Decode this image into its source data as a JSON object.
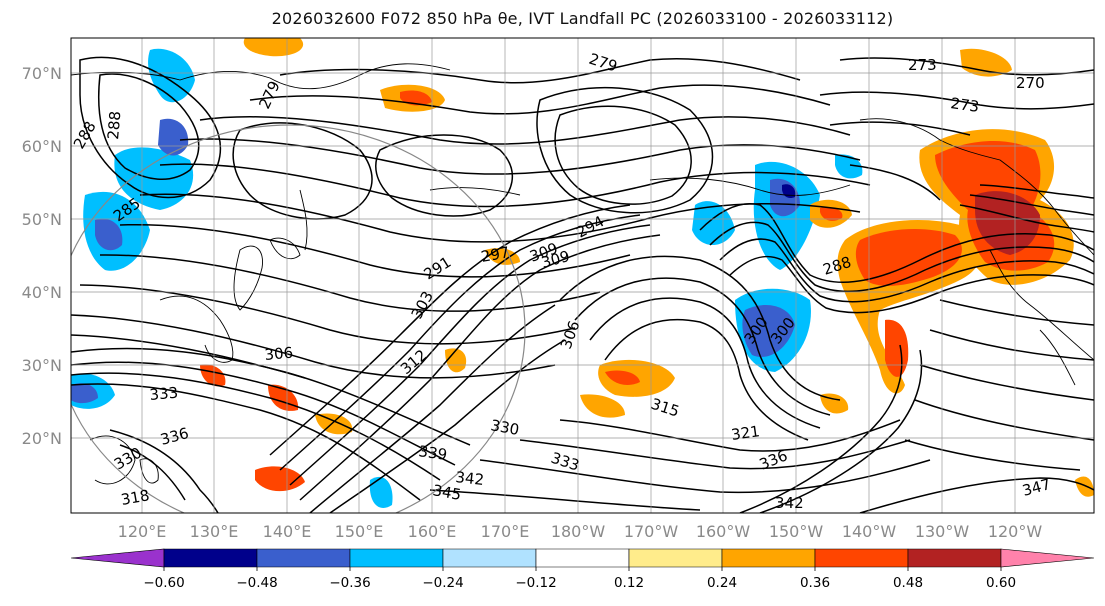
{
  "title": "2026032600 F072 850 hPa θe, IVT Landfall PC (2026033100 - 2026033112)",
  "lat_labels": [
    "70°N",
    "60°N",
    "50°N",
    "40°N",
    "30°N",
    "20°N"
  ],
  "lon_labels": [
    "120°E",
    "130°E",
    "140°E",
    "150°E",
    "160°E",
    "170°E",
    "180°W",
    "170°W",
    "160°W",
    "150°W",
    "140°W",
    "130°W",
    "120°W"
  ],
  "contour_labels": [
    "279",
    "273",
    "270",
    "273",
    "279",
    "288",
    "285",
    "288",
    "291",
    "294",
    "297",
    "300",
    "303",
    "306",
    "309",
    "300",
    "306",
    "288",
    "309",
    "315",
    "312",
    "321",
    "330",
    "333",
    "336",
    "339",
    "342",
    "345",
    "342",
    "347",
    "333",
    "336",
    "330",
    "318"
  ],
  "colorbar": {
    "colors": [
      "#9a32cd",
      "#00008b",
      "#3a5fcd",
      "#00bfff",
      "#b0e2ff",
      "#ffffff",
      "#ffec8b",
      "#ffa500",
      "#ff4500",
      "#b22222",
      "#ff82ab"
    ],
    "ticks": [
      "−0.60",
      "−0.48",
      "−0.36",
      "−0.24",
      "−0.12",
      "0.12",
      "0.24",
      "0.36",
      "0.48",
      "0.60"
    ]
  },
  "colors": {
    "frame": "#000000",
    "grid": "#999999",
    "axis_text": "#8a8a8a"
  }
}
